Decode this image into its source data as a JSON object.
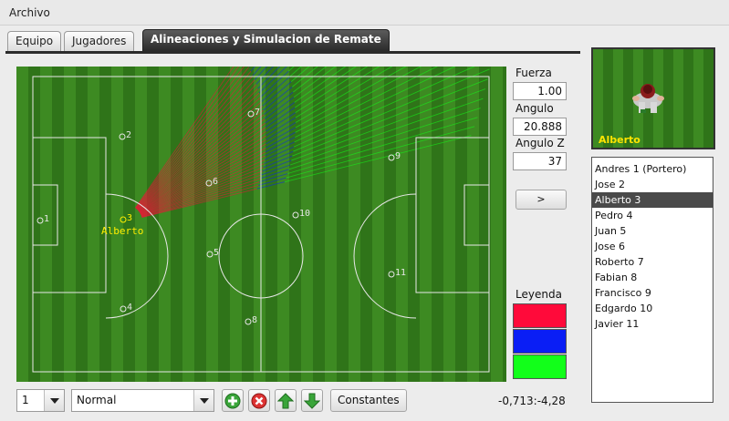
{
  "menu": {
    "archivo": "Archivo"
  },
  "tabs": [
    {
      "label": "Equipo"
    },
    {
      "label": "Jugadores"
    },
    {
      "label": "Alineaciones y Simulacion de Remate"
    }
  ],
  "controls": {
    "fuerza_label": "Fuerza",
    "fuerza_value": "1.00",
    "angulo_label": "Angulo",
    "angulo_value": "20.888",
    "angulo_z_label": "Angulo Z",
    "angulo_z_value": "37",
    "go_label": ">"
  },
  "legend": {
    "label": "Leyenda",
    "colors": [
      "#ff0a3a",
      "#0a1ef5",
      "#12ff1a"
    ]
  },
  "field": {
    "selected_player_name": "Alberto",
    "markers": [
      {
        "num": "1"
      },
      {
        "num": "2"
      },
      {
        "num": "3"
      },
      {
        "num": "4"
      },
      {
        "num": "5"
      },
      {
        "num": "6"
      },
      {
        "num": "7"
      },
      {
        "num": "8"
      },
      {
        "num": "9"
      },
      {
        "num": "10"
      },
      {
        "num": "11"
      }
    ]
  },
  "bottom": {
    "number_select": "1",
    "mode_select": "Normal",
    "constantes_label": "Constantes",
    "coordinates": "-0,713:-4,28"
  },
  "preview": {
    "player_name": "Alberto"
  },
  "players": [
    "Andres 1 (Portero)",
    "Jose 2",
    "Alberto 3",
    "Pedro 4",
    "Juan 5",
    "Jose 6",
    "Roberto 7",
    "Fabian 8",
    "Francisco 9",
    "Edgardo 10",
    "Javier 11"
  ],
  "selected_player_index": 2
}
